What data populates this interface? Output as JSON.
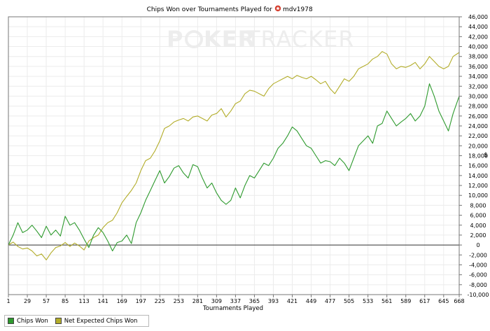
{
  "chart_data": {
    "type": "line",
    "title": "Chips Won over Tournaments Played for",
    "player": "mdv1978",
    "xlabel": "Tournaments Played",
    "ylabel": "$",
    "watermark": {
      "left": "P",
      "mid": "KER",
      "right": "TRACKER"
    },
    "x_ticks": [
      1,
      29,
      57,
      85,
      113,
      141,
      169,
      197,
      225,
      253,
      281,
      309,
      337,
      365,
      393,
      421,
      449,
      477,
      505,
      533,
      561,
      589,
      617,
      645,
      668
    ],
    "xlim": [
      1,
      668
    ],
    "ylim": [
      -10000,
      46000
    ],
    "y_ticks": [
      -10000,
      -8000,
      -6000,
      -4000,
      -2000,
      0,
      2000,
      4000,
      6000,
      8000,
      10000,
      12000,
      14000,
      16000,
      18000,
      20000,
      22000,
      24000,
      26000,
      28000,
      30000,
      32000,
      34000,
      36000,
      38000,
      40000,
      42000,
      44000,
      46000
    ],
    "y_tick_labels": [
      "-10,000",
      "-8,000",
      "-6,000",
      "-4,000",
      "-2,000",
      "0",
      "2,000",
      "4,000",
      "6,000",
      "8,000",
      "10,000",
      "12,000",
      "14,000",
      "16,000",
      "18,000",
      "20,000",
      "22,000",
      "24,000",
      "26,000",
      "28,000",
      "30,000",
      "32,000",
      "34,000",
      "36,000",
      "38,000",
      "40,000",
      "42,000",
      "44,000",
      "46,000"
    ],
    "grid": true,
    "legend_position": "bottom-left",
    "series": [
      {
        "name": "Chips Won",
        "color": "#2e9a2e",
        "x": [
          1,
          8,
          15,
          22,
          29,
          36,
          43,
          50,
          57,
          64,
          71,
          78,
          85,
          92,
          99,
          106,
          113,
          120,
          127,
          134,
          141,
          148,
          155,
          162,
          169,
          176,
          183,
          190,
          197,
          204,
          211,
          218,
          225,
          232,
          239,
          246,
          253,
          260,
          267,
          274,
          281,
          288,
          295,
          302,
          309,
          316,
          323,
          330,
          337,
          344,
          351,
          358,
          365,
          372,
          379,
          386,
          393,
          400,
          407,
          414,
          421,
          428,
          435,
          442,
          449,
          456,
          463,
          470,
          477,
          484,
          491,
          498,
          505,
          512,
          519,
          526,
          533,
          540,
          547,
          554,
          561,
          568,
          575,
          582,
          589,
          596,
          603,
          610,
          617,
          624,
          631,
          638,
          645,
          652,
          659,
          668
        ],
        "y": [
          0,
          2000,
          4500,
          2500,
          3000,
          4000,
          2800,
          1500,
          3800,
          2000,
          3000,
          1800,
          5800,
          4000,
          4500,
          3000,
          1200,
          -500,
          2000,
          3500,
          2500,
          800,
          -1200,
          500,
          800,
          2000,
          300,
          4500,
          6500,
          9000,
          11000,
          13000,
          15000,
          12500,
          13800,
          15500,
          16000,
          14500,
          13500,
          16200,
          15800,
          13500,
          11500,
          12500,
          10500,
          9000,
          8200,
          9000,
          11500,
          9500,
          12000,
          14000,
          13500,
          15000,
          16500,
          16000,
          17500,
          19500,
          20500,
          22000,
          23800,
          23000,
          21500,
          20000,
          19500,
          18000,
          16500,
          17000,
          16800,
          16000,
          17500,
          16500,
          15000,
          17500,
          20000,
          21000,
          22000,
          20500,
          24000,
          24500,
          27000,
          25500,
          24000,
          24800,
          25500,
          26500,
          25000,
          26000,
          28000,
          32500,
          30000,
          27000,
          25000,
          23000,
          26500,
          30000
        ]
      },
      {
        "name": "Net Expected Chips Won",
        "color": "#b3ad2a",
        "x": [
          1,
          8,
          15,
          22,
          29,
          36,
          43,
          50,
          57,
          64,
          71,
          78,
          85,
          92,
          99,
          106,
          113,
          120,
          127,
          134,
          141,
          148,
          155,
          162,
          169,
          176,
          183,
          190,
          197,
          204,
          211,
          218,
          225,
          232,
          239,
          246,
          253,
          260,
          267,
          274,
          281,
          288,
          295,
          302,
          309,
          316,
          323,
          330,
          337,
          344,
          351,
          358,
          365,
          372,
          379,
          386,
          393,
          400,
          407,
          414,
          421,
          428,
          435,
          442,
          449,
          456,
          463,
          470,
          477,
          484,
          491,
          498,
          505,
          512,
          519,
          526,
          533,
          540,
          547,
          554,
          561,
          568,
          575,
          582,
          589,
          596,
          603,
          610,
          617,
          624,
          631,
          638,
          645,
          652,
          659,
          668
        ],
        "y": [
          0,
          600,
          -300,
          -800,
          -600,
          -1200,
          -2200,
          -1800,
          -3000,
          -1600,
          -500,
          -200,
          500,
          -300,
          400,
          -200,
          -1000,
          800,
          1500,
          2000,
          3500,
          4500,
          5000,
          6500,
          8500,
          9800,
          11000,
          12500,
          15000,
          17000,
          17500,
          19000,
          21000,
          23500,
          24000,
          24800,
          25200,
          25500,
          25000,
          25800,
          26000,
          25500,
          25000,
          26200,
          26500,
          27500,
          25800,
          27000,
          28500,
          29000,
          30500,
          31200,
          31000,
          30500,
          30000,
          31500,
          32500,
          33000,
          33500,
          34000,
          33500,
          34200,
          33800,
          33500,
          34000,
          33300,
          32500,
          33000,
          31500,
          30500,
          32000,
          33500,
          33000,
          34000,
          35500,
          36000,
          36500,
          37500,
          38000,
          39000,
          38500,
          36500,
          35500,
          36000,
          35800,
          36200,
          36800,
          35500,
          36500,
          38000,
          37000,
          36000,
          35500,
          36000,
          38000,
          38800
        ]
      }
    ]
  }
}
